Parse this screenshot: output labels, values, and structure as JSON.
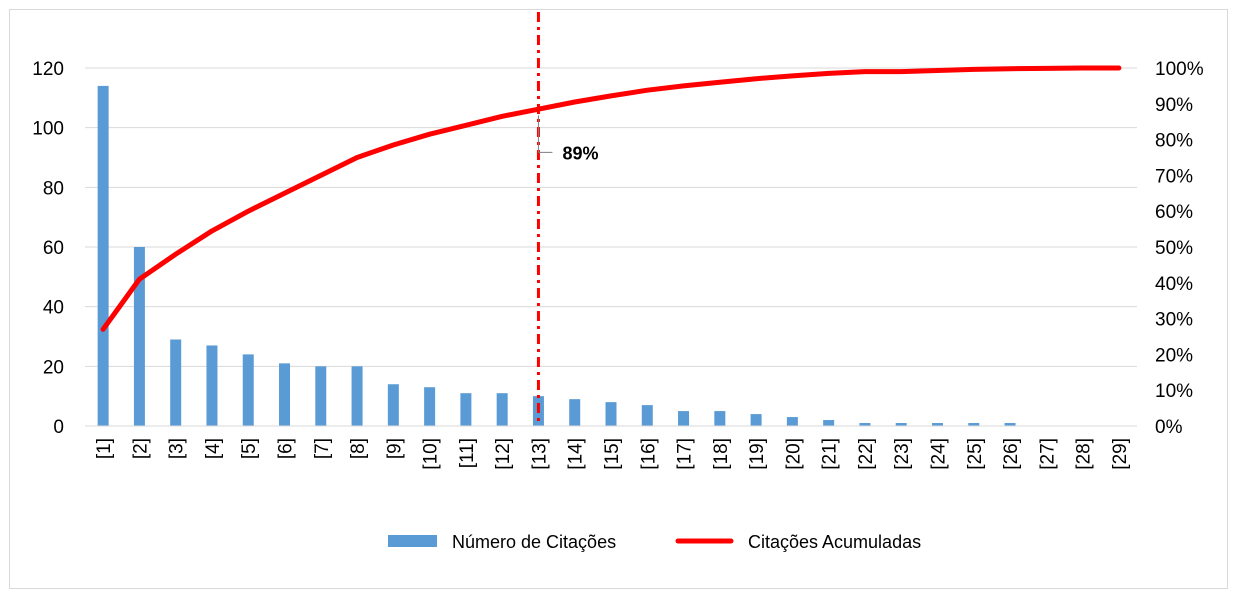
{
  "chart_data": {
    "type": "bar",
    "categories": [
      "[1]",
      "[2]",
      "[3]",
      "[4]",
      "[5]",
      "[6]",
      "[7]",
      "[8]",
      "[9]",
      "[10]",
      "[11]",
      "[12]",
      "[13]",
      "[14]",
      "[15]",
      "[16]",
      "[17]",
      "[18]",
      "[19]",
      "[20]",
      "[21]",
      "[22]",
      "[23]",
      "[24]",
      "[25]",
      "[26]",
      "[27]",
      "[28]",
      "[29]"
    ],
    "series": [
      {
        "name": "Número de Citações",
        "type": "bar",
        "axis": "left",
        "color": "#5b9bd5",
        "values": [
          114,
          60,
          29,
          27,
          24,
          21,
          20,
          20,
          14,
          13,
          11,
          11,
          10,
          9,
          8,
          7,
          5,
          5,
          4,
          3,
          2,
          1,
          1,
          1,
          1,
          1,
          0,
          0,
          0
        ]
      },
      {
        "name": "Citações Acumuladas",
        "type": "line",
        "axis": "right",
        "color": "#ff0000",
        "values": [
          0.27,
          0.41,
          0.48,
          0.545,
          0.6,
          0.65,
          0.7,
          0.75,
          0.785,
          0.815,
          0.84,
          0.865,
          0.885,
          0.905,
          0.922,
          0.938,
          0.95,
          0.96,
          0.97,
          0.978,
          0.985,
          0.99,
          0.99,
          0.993,
          0.996,
          0.998,
          0.999,
          1.0,
          1.0
        ]
      }
    ],
    "y_left": {
      "ylim": [
        0,
        120
      ],
      "ticks": [
        "0",
        "20",
        "40",
        "60",
        "80",
        "100",
        "120"
      ]
    },
    "y_right": {
      "ylim": [
        0,
        1
      ],
      "ticks": [
        "0%",
        "10%",
        "20%",
        "30%",
        "40%",
        "50%",
        "60%",
        "70%",
        "80%",
        "90%",
        "100%"
      ]
    },
    "grid": true,
    "legend_position": "bottom",
    "cutoff_category": "[13]",
    "cutoff_color": "#ff0000",
    "annotation": {
      "text": "89%",
      "category": "[13]",
      "value": 0.89
    },
    "title": "",
    "xlabel": "",
    "ylabel": ""
  }
}
